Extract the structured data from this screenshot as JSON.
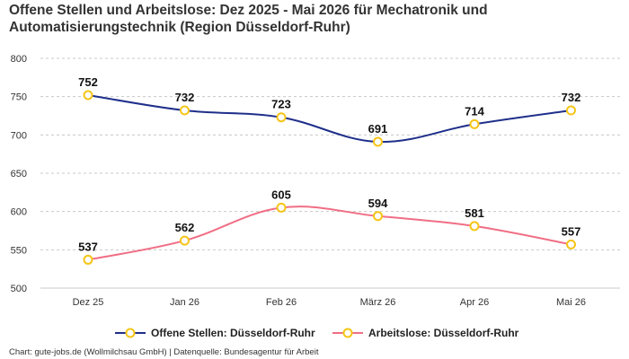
{
  "chart_data": {
    "type": "line",
    "title": "Offene Stellen und Arbeitslose: Dez 2025 - Mai 2026 für Mechatronik und Automatisierungstechnik (Region Düsseldorf-Ruhr)",
    "categories": [
      "Dez 25",
      "Jan 26",
      "Feb 26",
      "März 26",
      "Apr 26",
      "Mai 26"
    ],
    "ylim": [
      500,
      800
    ],
    "yticks": [
      500,
      550,
      600,
      650,
      700,
      750,
      800
    ],
    "grid": true,
    "legend_position": "bottom",
    "series": [
      {
        "name": "Offene Stellen: Düsseldorf-Ruhr",
        "color": "#1f2f8a",
        "values": [
          752,
          732,
          723,
          691,
          714,
          732
        ]
      },
      {
        "name": "Arbeitslose: Düsseldorf-Ruhr",
        "color": "#f06e85",
        "values": [
          537,
          562,
          605,
          594,
          581,
          557
        ]
      }
    ],
    "marker_color": "#f5c518"
  },
  "source": "Chart: gute-jobs.de (Wollmilchsau GmbH) | Datenquelle: Bundesagentur für Arbeit"
}
